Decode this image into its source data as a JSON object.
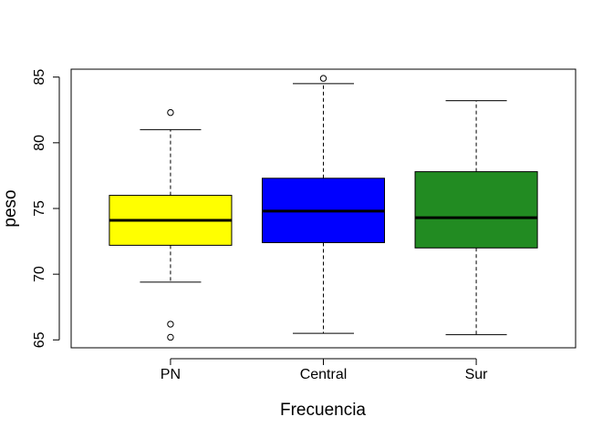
{
  "chart_data": {
    "type": "boxplot",
    "title": "",
    "xlabel": "Frecuencia",
    "ylabel": "peso",
    "ylim": [
      64.4,
      85.6
    ],
    "yticks": [
      65,
      70,
      75,
      80,
      85
    ],
    "grid": false,
    "legend": "none",
    "categories": [
      "PN",
      "Central",
      "Sur"
    ],
    "boxes": [
      {
        "category": "PN",
        "color": "#ffff00",
        "whisker_low": 69.4,
        "q1": 72.2,
        "median": 74.1,
        "q3": 76.0,
        "whisker_high": 81.0,
        "outliers": [
          82.3,
          66.2,
          65.2
        ]
      },
      {
        "category": "Central",
        "color": "#0000ff",
        "whisker_low": 65.5,
        "q1": 72.4,
        "median": 74.8,
        "q3": 77.3,
        "whisker_high": 84.5,
        "outliers": [
          84.9
        ]
      },
      {
        "category": "Sur",
        "color": "#228b22",
        "whisker_low": 65.4,
        "q1": 72.0,
        "median": 74.3,
        "q3": 77.8,
        "whisker_high": 83.2,
        "outliers": []
      }
    ]
  }
}
